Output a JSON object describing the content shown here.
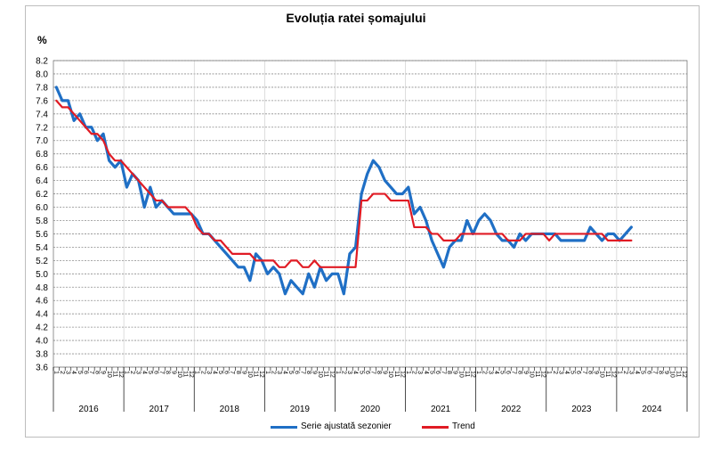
{
  "chart_data": {
    "type": "line",
    "title": "Evoluția ratei șomajului",
    "ylabel": "%",
    "ylim": [
      3.6,
      8.2
    ],
    "ystep": 0.2,
    "grid": true,
    "legend_position": "bottom",
    "start": "2016-01",
    "month_labels": [
      "1",
      "2",
      "3",
      "4",
      "5",
      "6",
      "7",
      "8",
      "9",
      "10",
      "11",
      "12"
    ],
    "years": [
      "2016",
      "2017",
      "2018",
      "2019",
      "2020",
      "2021",
      "2022",
      "2023",
      "2024"
    ],
    "series": [
      {
        "name": "Serie ajustată sezonier",
        "color": "#1f6fc5",
        "values": [
          7.8,
          7.6,
          7.6,
          7.3,
          7.4,
          7.2,
          7.2,
          7.0,
          7.1,
          6.7,
          6.6,
          6.7,
          6.3,
          6.5,
          6.4,
          6.0,
          6.3,
          6.0,
          6.1,
          6.0,
          5.9,
          5.9,
          5.9,
          5.9,
          5.8,
          5.6,
          5.6,
          5.5,
          5.4,
          5.3,
          5.2,
          5.1,
          5.1,
          4.9,
          5.3,
          5.2,
          5.0,
          5.1,
          5.0,
          4.7,
          4.9,
          4.8,
          4.7,
          5.0,
          4.8,
          5.1,
          4.9,
          5.0,
          5.0,
          4.7,
          5.3,
          5.4,
          6.2,
          6.5,
          6.7,
          6.6,
          6.4,
          6.3,
          6.2,
          6.2,
          6.3,
          5.9,
          6.0,
          5.8,
          5.5,
          5.3,
          5.1,
          5.4,
          5.5,
          5.5,
          5.8,
          5.6,
          5.8,
          5.9,
          5.8,
          5.6,
          5.5,
          5.5,
          5.4,
          5.6,
          5.5,
          5.6,
          5.6,
          5.6,
          5.6,
          5.6,
          5.5,
          5.5,
          5.5,
          5.5,
          5.5,
          5.7,
          5.6,
          5.5,
          5.6,
          5.6,
          5.5,
          5.6,
          5.7
        ]
      },
      {
        "name": "Trend",
        "color": "#e01b24",
        "values": [
          7.6,
          7.5,
          7.5,
          7.4,
          7.3,
          7.2,
          7.1,
          7.1,
          7.0,
          6.8,
          6.7,
          6.7,
          6.6,
          6.5,
          6.4,
          6.3,
          6.2,
          6.1,
          6.1,
          6.0,
          6.0,
          6.0,
          6.0,
          5.9,
          5.7,
          5.6,
          5.6,
          5.5,
          5.5,
          5.4,
          5.3,
          5.3,
          5.3,
          5.3,
          5.2,
          5.2,
          5.2,
          5.2,
          5.1,
          5.1,
          5.2,
          5.2,
          5.1,
          5.1,
          5.2,
          5.1,
          5.1,
          5.1,
          5.1,
          5.1,
          5.1,
          5.1,
          6.1,
          6.1,
          6.2,
          6.2,
          6.2,
          6.1,
          6.1,
          6.1,
          6.1,
          5.7,
          5.7,
          5.7,
          5.6,
          5.6,
          5.5,
          5.5,
          5.5,
          5.6,
          5.6,
          5.6,
          5.6,
          5.6,
          5.6,
          5.6,
          5.6,
          5.5,
          5.5,
          5.5,
          5.6,
          5.6,
          5.6,
          5.6,
          5.5,
          5.6,
          5.6,
          5.6,
          5.6,
          5.6,
          5.6,
          5.6,
          5.6,
          5.6,
          5.5,
          5.5,
          5.5,
          5.5,
          5.5
        ]
      }
    ]
  }
}
